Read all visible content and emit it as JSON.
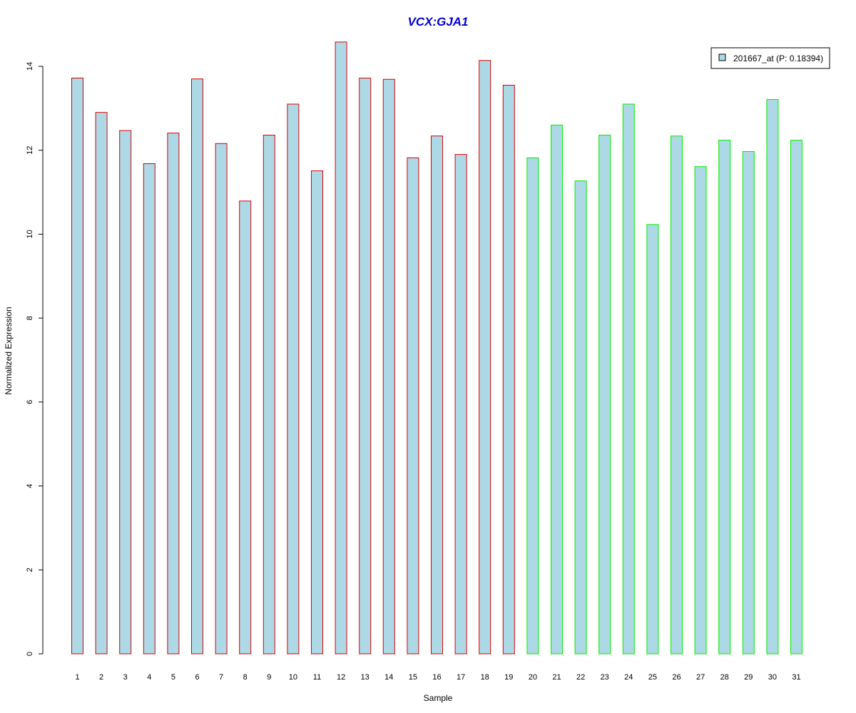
{
  "chart_data": {
    "type": "bar",
    "title": "VCX:GJA1",
    "xlabel": "Sample",
    "ylabel": "Normalized Expression",
    "categories": [
      "1",
      "2",
      "3",
      "4",
      "5",
      "6",
      "7",
      "8",
      "9",
      "10",
      "11",
      "12",
      "13",
      "14",
      "15",
      "16",
      "17",
      "18",
      "19",
      "20",
      "21",
      "22",
      "23",
      "24",
      "25",
      "26",
      "27",
      "28",
      "29",
      "30",
      "31"
    ],
    "series": [
      {
        "name": "201667_at (P: 0.18394)",
        "values": [
          13.72,
          12.9,
          12.47,
          11.68,
          12.41,
          13.7,
          12.16,
          10.79,
          12.36,
          13.1,
          11.51,
          14.58,
          13.72,
          13.69,
          11.82,
          12.34,
          11.9,
          14.14,
          13.55,
          11.82,
          12.6,
          11.27,
          12.36,
          13.1,
          10.23,
          12.34,
          11.61,
          12.24,
          11.97,
          13.21,
          12.24
        ]
      }
    ],
    "groups": [
      {
        "samples": [
          1,
          19
        ],
        "border_color": "#dd0000"
      },
      {
        "samples": [
          20,
          31
        ],
        "border_color": "#00ee00"
      }
    ],
    "bar_fill": "#add8e6",
    "ylim": [
      0,
      14
    ],
    "yticks": [
      0,
      2,
      4,
      6,
      8,
      10,
      12,
      14
    ],
    "legend_position": "top-right",
    "grid": false
  }
}
